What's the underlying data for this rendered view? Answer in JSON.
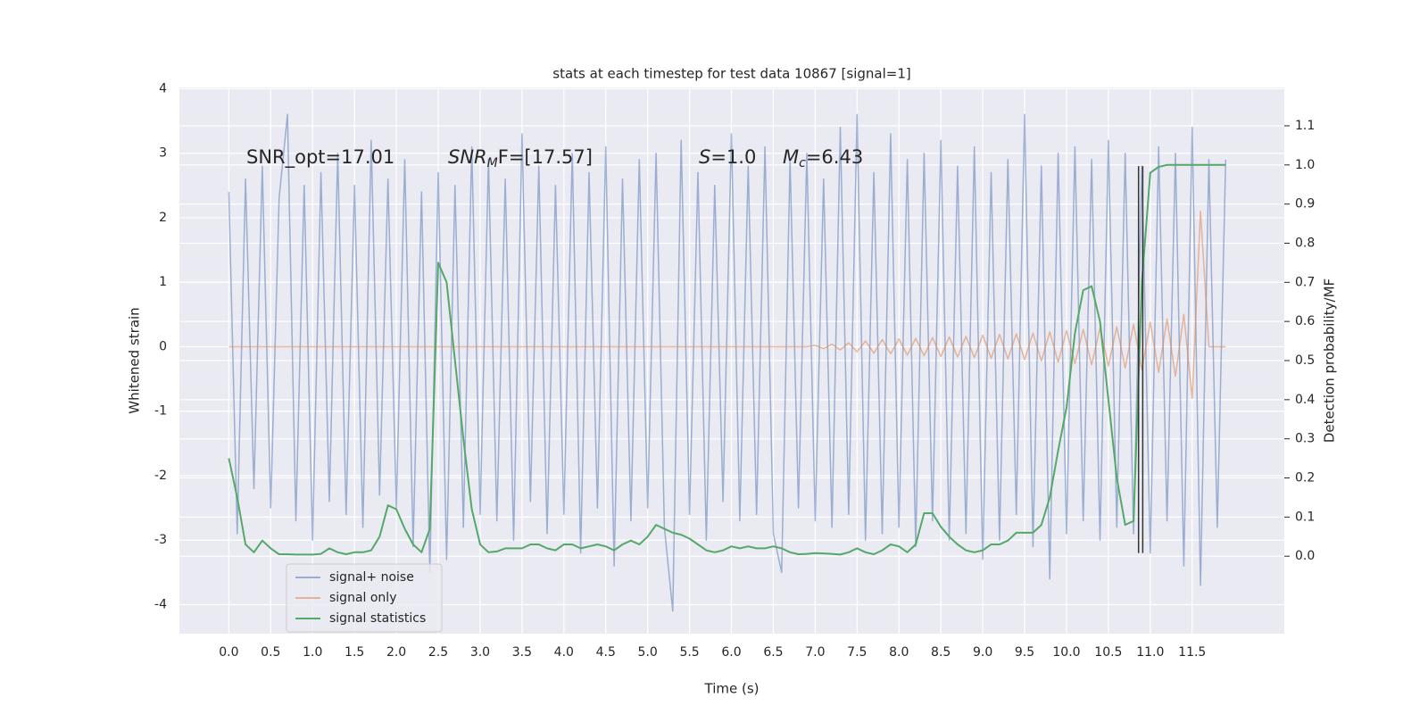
{
  "chart_data": {
    "type": "line",
    "title": "stats at each timestep for test data 10867 [signal=1]",
    "xlabel": "Time (s)",
    "ylabel": "Whitened strain",
    "y2label": "Detection probability/MF",
    "annotations": [
      {
        "main": "SNR_opt=17.01"
      },
      {
        "main": "SNR",
        "sub": "M",
        "rest": "F=[17.57]"
      },
      {
        "main": "S",
        "rest": "=1.0"
      },
      {
        "main": "M",
        "sub": "c",
        "rest": "=6.43"
      }
    ],
    "xlim": [
      -0.59,
      12.6
    ],
    "ylim": [
      -4.45,
      4.02
    ],
    "y2lim": [
      -0.198,
      1.198
    ],
    "xticks": [
      {
        "value": 0,
        "label": "0.0"
      },
      0.5,
      {
        "value": 1,
        "label": "1.0"
      },
      1.5,
      {
        "value": 2,
        "label": "2.0"
      },
      2.5,
      {
        "value": 3,
        "label": "3.0"
      },
      3.5,
      {
        "value": 4,
        "label": "4.0"
      },
      4.5,
      {
        "value": 5,
        "label": "5.0"
      },
      5.5,
      {
        "value": 6,
        "label": "6.0"
      },
      6.5,
      {
        "value": 7,
        "label": "7.0"
      },
      7.5,
      {
        "value": 8,
        "label": "8.0"
      },
      8.5,
      {
        "value": 9,
        "label": "9.0"
      },
      9.5,
      {
        "value": 10,
        "label": "10.0"
      },
      10.5,
      {
        "value": 11,
        "label": "11.0"
      },
      11.5
    ],
    "yticks": [
      -4,
      -3,
      -2,
      -1,
      0,
      1,
      2,
      3,
      4
    ],
    "y2ticks": [
      {
        "value": 0,
        "label": "0.0"
      },
      0.1,
      0.2,
      0.3,
      0.4,
      0.5,
      0.6,
      0.7,
      0.8,
      0.9,
      {
        "value": 1,
        "label": "1.0"
      },
      1.1
    ],
    "grid": true,
    "legend": "lower left",
    "x": [
      0.0,
      0.1,
      0.2,
      0.3,
      0.4,
      0.5,
      0.6,
      0.7,
      0.8,
      0.9,
      1.0,
      1.1,
      1.2,
      1.3,
      1.4,
      1.5,
      1.6,
      1.7,
      1.8,
      1.9,
      2.0,
      2.1,
      2.2,
      2.3,
      2.4,
      2.5,
      2.6,
      2.7,
      2.8,
      2.9,
      3.0,
      3.1,
      3.2,
      3.3,
      3.4,
      3.5,
      3.6,
      3.7,
      3.8,
      3.9,
      4.0,
      4.1,
      4.2,
      4.3,
      4.4,
      4.5,
      4.6,
      4.7,
      4.8,
      4.9,
      5.0,
      5.1,
      5.2,
      5.3,
      5.4,
      5.5,
      5.6,
      5.7,
      5.8,
      5.9,
      6.0,
      6.1,
      6.2,
      6.3,
      6.4,
      6.5,
      6.6,
      6.7,
      6.8,
      6.9,
      7.0,
      7.1,
      7.2,
      7.3,
      7.4,
      7.5,
      7.6,
      7.7,
      7.8,
      7.9,
      8.0,
      8.1,
      8.2,
      8.3,
      8.4,
      8.5,
      8.6,
      8.7,
      8.8,
      8.9,
      9.0,
      9.1,
      9.2,
      9.3,
      9.4,
      9.5,
      9.6,
      9.7,
      9.8,
      9.9,
      10.0,
      10.1,
      10.2,
      10.3,
      10.4,
      10.5,
      10.6,
      10.7,
      10.8,
      10.9,
      11.0,
      11.1,
      11.2,
      11.3,
      11.4,
      11.5,
      11.6,
      11.7,
      11.8,
      11.9
    ],
    "series": [
      {
        "name": "signal+ noise",
        "color": "rgba(76,114,176,0.5)",
        "axis": "y",
        "values": [
          2.4,
          -2.9,
          2.6,
          -2.2,
          2.8,
          -2.5,
          2.3,
          3.6,
          -2.7,
          2.5,
          -3.0,
          2.7,
          -2.4,
          3.0,
          -2.6,
          2.5,
          -2.8,
          3.2,
          -2.3,
          2.6,
          -2.5,
          2.9,
          -3.1,
          2.4,
          -3.5,
          2.7,
          -3.3,
          2.5,
          -2.8,
          3.1,
          -2.6,
          2.9,
          -2.7,
          2.6,
          -3.0,
          3.3,
          -2.4,
          2.8,
          -2.9,
          2.5,
          -2.6,
          3.0,
          -3.2,
          2.7,
          -2.5,
          3.1,
          -3.4,
          2.6,
          -2.7,
          2.9,
          -2.5,
          3.0,
          -2.8,
          -4.1,
          3.2,
          -2.6,
          2.7,
          -3.0,
          2.5,
          -2.4,
          3.3,
          -2.7,
          2.8,
          -2.6,
          3.1,
          -2.9,
          -3.5,
          2.9,
          -2.5,
          3.0,
          -2.7,
          2.6,
          -2.8,
          3.4,
          -2.6,
          3.6,
          -3.0,
          2.7,
          -2.9,
          3.3,
          -2.8,
          2.9,
          -3.1,
          3.0,
          -2.7,
          3.2,
          -3.0,
          2.8,
          -2.9,
          3.1,
          -3.3,
          2.7,
          -3.0,
          2.9,
          -2.6,
          3.6,
          -3.1,
          2.8,
          -3.6,
          3.0,
          -2.9,
          3.1,
          -2.7,
          2.9,
          -3.0,
          3.2,
          -2.8,
          3.0,
          -2.9,
          2.8,
          -3.2,
          3.1,
          -2.7,
          3.0,
          -3.4,
          3.4,
          -3.7,
          2.9,
          -2.8,
          2.9
        ]
      },
      {
        "name": "signal only",
        "color": "rgba(221,132,82,0.55)",
        "axis": "y",
        "values": [
          0,
          0,
          0,
          0,
          0,
          0,
          0,
          0,
          0,
          0,
          0,
          0,
          0,
          0,
          0,
          0,
          0,
          0,
          0,
          0,
          0,
          0,
          0,
          0,
          0,
          0,
          0,
          0,
          0,
          0,
          0,
          0,
          0,
          0,
          0,
          0,
          0,
          0,
          0,
          0,
          0,
          0,
          0,
          0,
          0,
          0,
          0,
          0,
          0,
          0,
          0,
          0,
          0,
          0,
          0,
          0,
          0,
          0,
          0,
          0,
          0,
          0,
          0,
          0,
          0,
          0,
          0,
          0,
          0,
          0,
          0.02,
          -0.03,
          0.04,
          -0.05,
          0.06,
          -0.08,
          0.09,
          -0.1,
          0.11,
          -0.11,
          0.12,
          -0.13,
          0.13,
          -0.14,
          0.14,
          -0.15,
          0.15,
          -0.16,
          0.16,
          -0.17,
          0.18,
          -0.18,
          0.19,
          -0.19,
          0.2,
          -0.2,
          0.21,
          -0.22,
          0.23,
          -0.24,
          0.25,
          -0.26,
          0.27,
          -0.28,
          0.29,
          -0.3,
          0.31,
          -0.33,
          0.35,
          -0.36,
          0.38,
          -0.4,
          0.43,
          -0.46,
          0.5,
          -0.8,
          2.1,
          0,
          0,
          0
        ]
      },
      {
        "name": "signal statistics",
        "color": "#55a868",
        "axis": "y2",
        "values": [
          0.25,
          0.15,
          0.03,
          0.01,
          0.04,
          0.02,
          0.005,
          0.005,
          0.004,
          0.004,
          0.004,
          0.006,
          0.02,
          0.01,
          0.005,
          0.01,
          0.01,
          0.015,
          0.05,
          0.13,
          0.12,
          0.07,
          0.03,
          0.01,
          0.07,
          0.75,
          0.7,
          0.5,
          0.3,
          0.12,
          0.03,
          0.01,
          0.012,
          0.02,
          0.02,
          0.02,
          0.03,
          0.03,
          0.02,
          0.015,
          0.03,
          0.03,
          0.02,
          0.025,
          0.03,
          0.025,
          0.015,
          0.03,
          0.04,
          0.03,
          0.05,
          0.08,
          0.07,
          0.06,
          0.055,
          0.045,
          0.03,
          0.015,
          0.01,
          0.015,
          0.025,
          0.02,
          0.025,
          0.02,
          0.02,
          0.025,
          0.02,
          0.01,
          0.005,
          0.006,
          0.008,
          0.007,
          0.006,
          0.004,
          0.01,
          0.02,
          0.01,
          0.005,
          0.015,
          0.03,
          0.025,
          0.01,
          0.03,
          0.11,
          0.11,
          0.075,
          0.05,
          0.03,
          0.015,
          0.01,
          0.015,
          0.03,
          0.03,
          0.04,
          0.06,
          0.06,
          0.06,
          0.08,
          0.15,
          0.27,
          0.38,
          0.57,
          0.68,
          0.69,
          0.6,
          0.4,
          0.2,
          0.08,
          0.09,
          0.7,
          0.98,
          0.995,
          1.0,
          1.0,
          1.0,
          1.0,
          1.0,
          1.0,
          1.0,
          1.0
        ]
      }
    ],
    "vlines": [
      {
        "x": 10.86,
        "ymin": -3.2,
        "ymax": 2.8,
        "color": "#333333"
      },
      {
        "x": 10.91,
        "ymin": -3.2,
        "ymax": 2.8,
        "color": "#333333"
      }
    ]
  }
}
